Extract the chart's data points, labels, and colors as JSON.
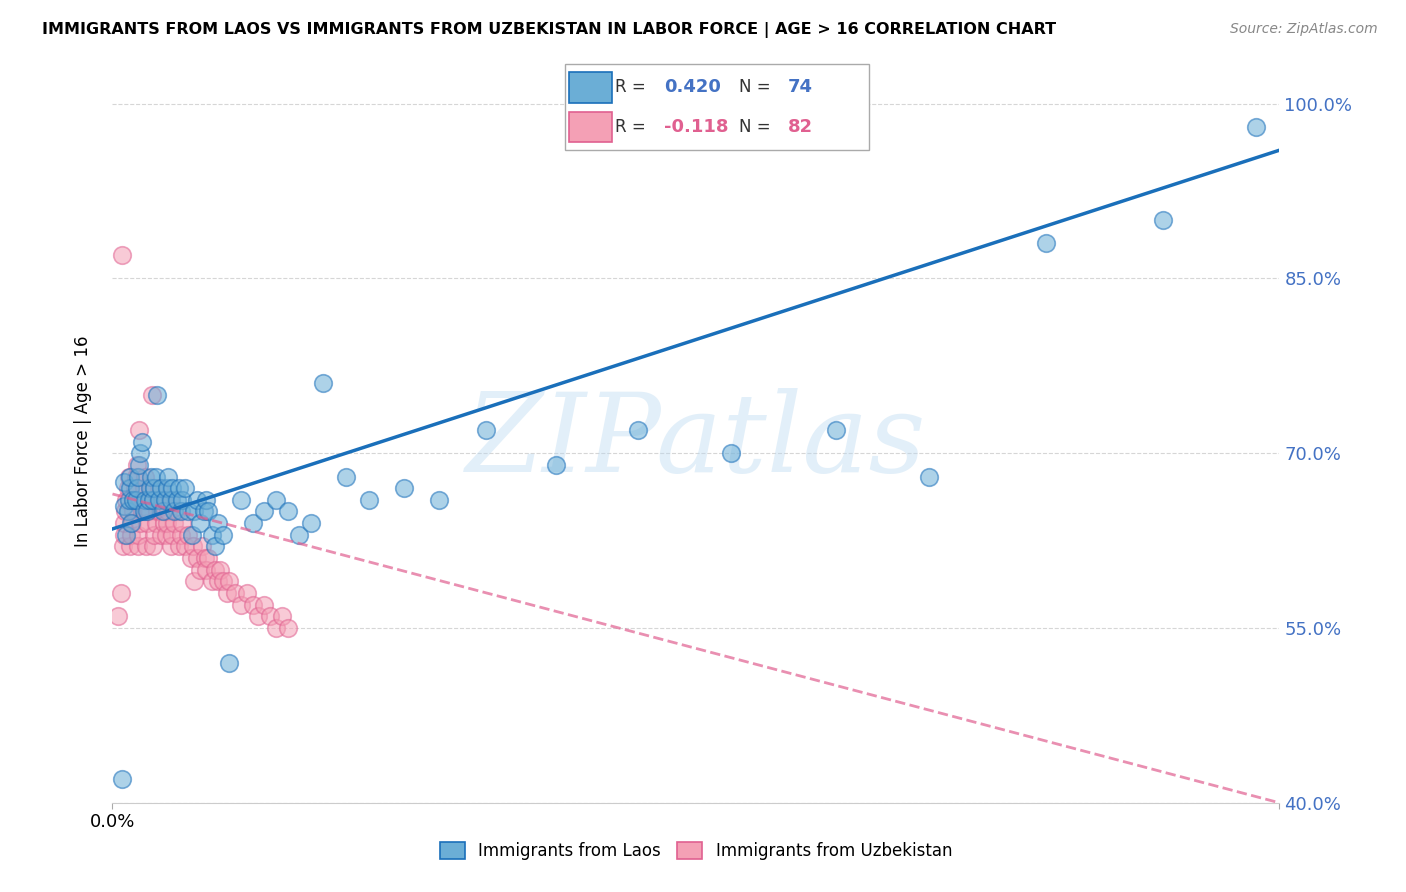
{
  "title": "IMMIGRANTS FROM LAOS VS IMMIGRANTS FROM UZBEKISTAN IN LABOR FORCE | AGE > 16 CORRELATION CHART",
  "source": "Source: ZipAtlas.com",
  "ylabel": "In Labor Force | Age > 16",
  "watermark": "ZIPatlas",
  "xlim": [
    0.0,
    0.1
  ],
  "ylim": [
    0.4,
    1.02
  ],
  "yticks": [
    0.4,
    0.55,
    0.7,
    0.85,
    1.0
  ],
  "ytick_labels": [
    "40.0%",
    "55.0%",
    "70.0%",
    "85.0%",
    "100.0%"
  ],
  "legend_laos": "Immigrants from Laos",
  "legend_uzbek": "Immigrants from Uzbekistan",
  "R_laos": 0.42,
  "N_laos": 74,
  "R_uzbek": -0.118,
  "N_uzbek": 82,
  "color_laos": "#6baed6",
  "color_uzbek": "#f4a0b5",
  "color_laos_line": "#1a6fba",
  "color_uzbek_line": "#e06090",
  "laos_x": [
    0.0008,
    0.001,
    0.001,
    0.0012,
    0.0013,
    0.0014,
    0.0015,
    0.0015,
    0.0016,
    0.0018,
    0.002,
    0.0021,
    0.0022,
    0.0023,
    0.0024,
    0.0025,
    0.0027,
    0.0028,
    0.003,
    0.0031,
    0.0032,
    0.0033,
    0.0035,
    0.0036,
    0.0037,
    0.0038,
    0.004,
    0.0042,
    0.0043,
    0.0045,
    0.0047,
    0.0048,
    0.005,
    0.0051,
    0.0053,
    0.0055,
    0.0057,
    0.0059,
    0.006,
    0.0062,
    0.0065,
    0.0068,
    0.007,
    0.0072,
    0.0075,
    0.0078,
    0.008,
    0.0082,
    0.0085,
    0.0088,
    0.009,
    0.0095,
    0.01,
    0.011,
    0.012,
    0.013,
    0.014,
    0.015,
    0.016,
    0.017,
    0.018,
    0.02,
    0.022,
    0.025,
    0.028,
    0.032,
    0.038,
    0.045,
    0.053,
    0.062,
    0.07,
    0.08,
    0.09,
    0.098
  ],
  "laos_y": [
    0.42,
    0.655,
    0.675,
    0.63,
    0.65,
    0.66,
    0.67,
    0.68,
    0.64,
    0.66,
    0.66,
    0.67,
    0.68,
    0.69,
    0.7,
    0.71,
    0.65,
    0.66,
    0.65,
    0.66,
    0.67,
    0.68,
    0.66,
    0.67,
    0.68,
    0.75,
    0.66,
    0.67,
    0.65,
    0.66,
    0.67,
    0.68,
    0.66,
    0.67,
    0.65,
    0.66,
    0.67,
    0.65,
    0.66,
    0.67,
    0.65,
    0.63,
    0.65,
    0.66,
    0.64,
    0.65,
    0.66,
    0.65,
    0.63,
    0.62,
    0.64,
    0.63,
    0.52,
    0.66,
    0.64,
    0.65,
    0.66,
    0.65,
    0.63,
    0.64,
    0.76,
    0.68,
    0.66,
    0.67,
    0.66,
    0.72,
    0.69,
    0.72,
    0.7,
    0.72,
    0.68,
    0.88,
    0.9,
    0.98
  ],
  "uzbek_x": [
    0.0005,
    0.0007,
    0.0008,
    0.0009,
    0.001,
    0.001,
    0.0011,
    0.0012,
    0.0013,
    0.0014,
    0.0015,
    0.0016,
    0.0017,
    0.0018,
    0.0018,
    0.0019,
    0.002,
    0.0021,
    0.0022,
    0.0022,
    0.0023,
    0.0024,
    0.0025,
    0.0026,
    0.0027,
    0.0028,
    0.0029,
    0.003,
    0.0031,
    0.0032,
    0.0033,
    0.0034,
    0.0035,
    0.0036,
    0.0037,
    0.0038,
    0.0039,
    0.004,
    0.0041,
    0.0042,
    0.0043,
    0.0044,
    0.0045,
    0.0046,
    0.0047,
    0.0048,
    0.0049,
    0.005,
    0.0051,
    0.0053,
    0.0055,
    0.0057,
    0.0059,
    0.006,
    0.0062,
    0.0065,
    0.0067,
    0.0069,
    0.007,
    0.0072,
    0.0075,
    0.0077,
    0.0079,
    0.008,
    0.0082,
    0.0085,
    0.0088,
    0.009,
    0.0092,
    0.0095,
    0.0098,
    0.01,
    0.0105,
    0.011,
    0.0115,
    0.012,
    0.0125,
    0.013,
    0.0135,
    0.014,
    0.0145,
    0.015
  ],
  "uzbek_y": [
    0.56,
    0.58,
    0.87,
    0.62,
    0.63,
    0.64,
    0.65,
    0.66,
    0.67,
    0.68,
    0.62,
    0.63,
    0.64,
    0.65,
    0.66,
    0.67,
    0.68,
    0.69,
    0.62,
    0.63,
    0.72,
    0.64,
    0.65,
    0.66,
    0.67,
    0.68,
    0.62,
    0.64,
    0.65,
    0.66,
    0.67,
    0.75,
    0.62,
    0.63,
    0.64,
    0.65,
    0.66,
    0.67,
    0.65,
    0.63,
    0.66,
    0.64,
    0.65,
    0.63,
    0.64,
    0.65,
    0.66,
    0.62,
    0.63,
    0.64,
    0.65,
    0.62,
    0.63,
    0.64,
    0.62,
    0.63,
    0.61,
    0.62,
    0.59,
    0.61,
    0.6,
    0.62,
    0.61,
    0.6,
    0.61,
    0.59,
    0.6,
    0.59,
    0.6,
    0.59,
    0.58,
    0.59,
    0.58,
    0.57,
    0.58,
    0.57,
    0.56,
    0.57,
    0.56,
    0.55,
    0.56,
    0.55
  ]
}
